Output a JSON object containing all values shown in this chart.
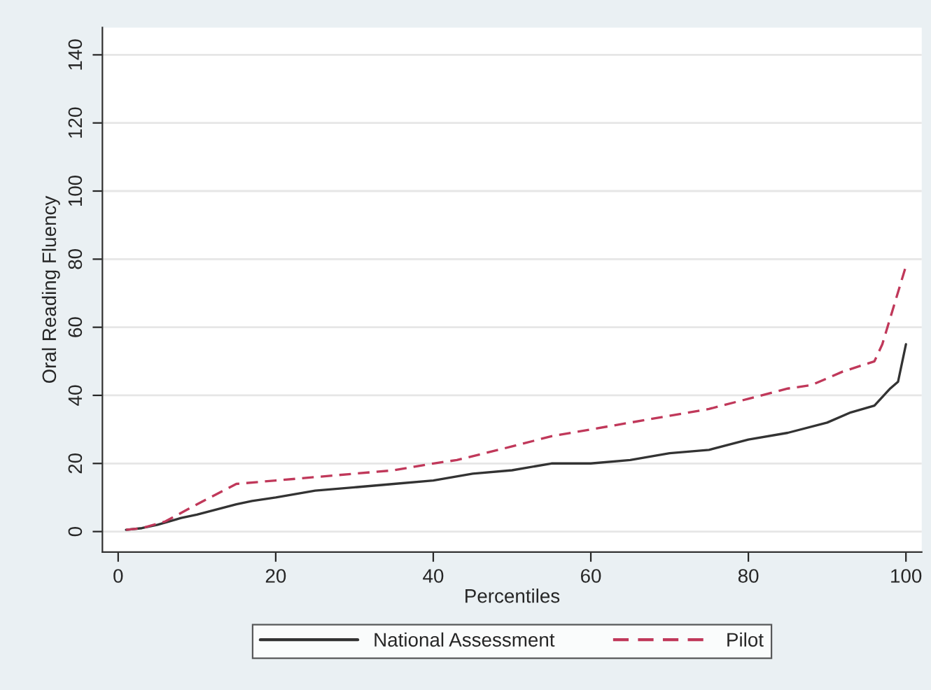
{
  "chart_data": {
    "type": "line",
    "xlabel": "Percentiles",
    "ylabel": "Oral Reading Fluency",
    "xlim": [
      -2,
      102
    ],
    "xticks": [
      0,
      20,
      40,
      60,
      80,
      100
    ],
    "ylim": [
      -6,
      148
    ],
    "yticks": [
      0,
      20,
      40,
      60,
      80,
      100,
      120,
      140
    ],
    "grid": "y",
    "legend": "bottom",
    "series": [
      {
        "name": "National Assessment",
        "color": "#333333",
        "line_style": "solid",
        "x": [
          1,
          3,
          5,
          8,
          10,
          15,
          17,
          20,
          25,
          30,
          35,
          40,
          45,
          50,
          55,
          60,
          65,
          70,
          75,
          80,
          85,
          90,
          93,
          96,
          98,
          99,
          100
        ],
        "values": [
          0.5,
          1,
          2,
          4,
          5,
          8,
          9,
          10,
          12,
          13,
          14,
          15,
          17,
          18,
          20,
          20,
          21,
          23,
          24,
          27,
          29,
          32,
          35,
          37,
          42,
          44,
          55
        ]
      },
      {
        "name": "Pilot",
        "color": "#c0385a",
        "line_style": "dashed",
        "x": [
          1,
          3,
          6,
          10,
          15,
          20,
          25,
          30,
          35,
          40,
          43,
          50,
          55,
          60,
          65,
          70,
          75,
          80,
          85,
          88,
          92,
          96,
          97,
          100
        ],
        "values": [
          0.5,
          1,
          3,
          8,
          14,
          15,
          16,
          17,
          18,
          20,
          21,
          25,
          28,
          30,
          32,
          34,
          36,
          39,
          42,
          43,
          47,
          50,
          55,
          78
        ]
      }
    ]
  }
}
